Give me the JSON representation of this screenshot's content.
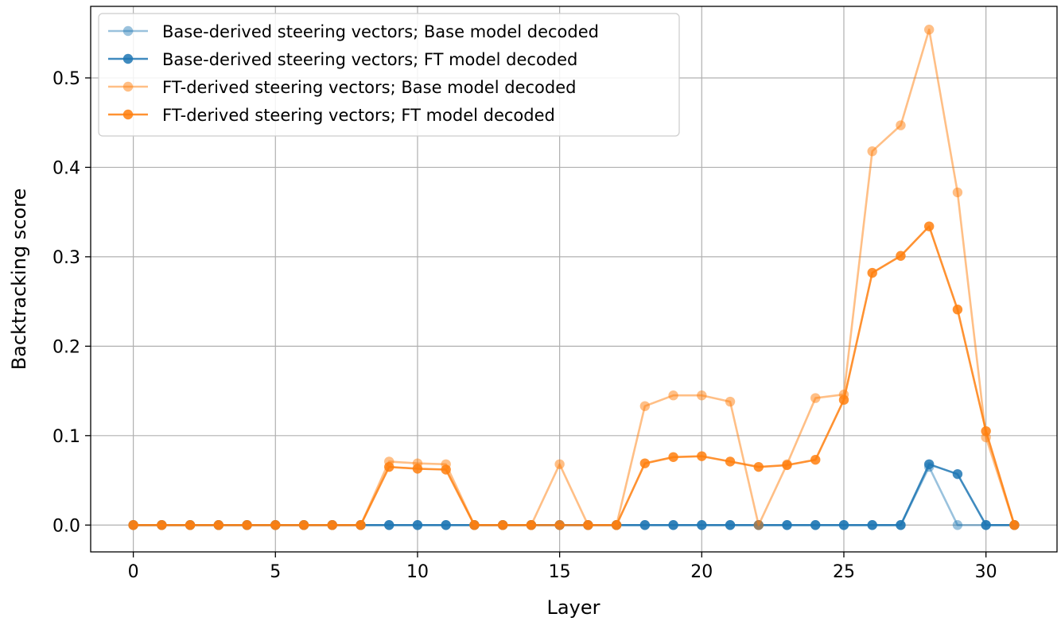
{
  "chart_data": {
    "type": "line",
    "title": "",
    "xlabel": "Layer",
    "ylabel": "Backtracking score",
    "xlim": [
      -1.5,
      32.5
    ],
    "ylim": [
      -0.03,
      0.58
    ],
    "xticks": [
      0,
      5,
      10,
      15,
      20,
      25,
      30
    ],
    "xtick_labels": [
      "0",
      "5",
      "10",
      "15",
      "20",
      "25",
      "30"
    ],
    "yticks": [
      0.0,
      0.1,
      0.2,
      0.3,
      0.4,
      0.5
    ],
    "ytick_labels": [
      "0.0",
      "0.1",
      "0.2",
      "0.3",
      "0.4",
      "0.5"
    ],
    "grid": true,
    "legend_position": "top-left",
    "x": [
      0,
      1,
      2,
      3,
      4,
      5,
      6,
      7,
      8,
      9,
      10,
      11,
      12,
      13,
      14,
      15,
      16,
      17,
      18,
      19,
      20,
      21,
      22,
      23,
      24,
      25,
      26,
      27,
      28,
      29,
      30,
      31
    ],
    "series": [
      {
        "name": "Base-derived steering vectors; Base model decoded",
        "color": "#1f77b4",
        "opacity": 0.45,
        "values": [
          0,
          0,
          0,
          0,
          0,
          0,
          0,
          0,
          0,
          0,
          0,
          0,
          0,
          0,
          0,
          0,
          0,
          0,
          0,
          0,
          0,
          0,
          0,
          0,
          0,
          0,
          0,
          0,
          0.065,
          0,
          0,
          0
        ]
      },
      {
        "name": "Base-derived steering vectors; FT model decoded",
        "color": "#1f77b4",
        "opacity": 0.85,
        "values": [
          0,
          0,
          0,
          0,
          0,
          0,
          0,
          0,
          0,
          0,
          0,
          0,
          0,
          0,
          0,
          0,
          0,
          0,
          0,
          0,
          0,
          0,
          0,
          0,
          0,
          0,
          0,
          0,
          0.068,
          0.057,
          0,
          0
        ]
      },
      {
        "name": "FT-derived steering vectors; Base model decoded",
        "color": "#ff7f0e",
        "opacity": 0.5,
        "values": [
          0,
          0,
          0,
          0,
          0,
          0,
          0,
          0,
          0,
          0.071,
          0.069,
          0.068,
          0,
          0,
          0,
          0.068,
          0,
          0,
          0.133,
          0.145,
          0.145,
          0.138,
          0,
          0.068,
          0.142,
          0.146,
          0.418,
          0.447,
          0.554,
          0.372,
          0.098,
          0
        ]
      },
      {
        "name": "FT-derived steering vectors; FT model decoded",
        "color": "#ff7f0e",
        "opacity": 0.85,
        "values": [
          0,
          0,
          0,
          0,
          0,
          0,
          0,
          0,
          0,
          0.065,
          0.063,
          0.062,
          0,
          0,
          0,
          0,
          0,
          0,
          0.069,
          0.076,
          0.077,
          0.071,
          0.065,
          0.067,
          0.073,
          0.14,
          0.282,
          0.301,
          0.334,
          0.241,
          0.105,
          0
        ]
      }
    ]
  }
}
